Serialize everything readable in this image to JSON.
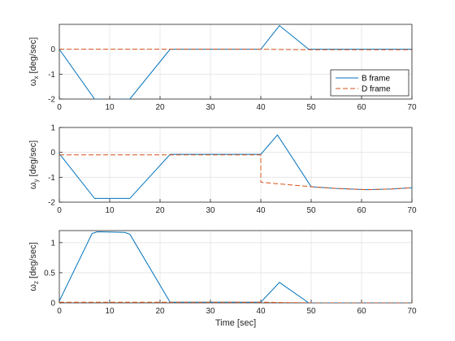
{
  "chart_data": [
    {
      "type": "line",
      "ylabel": "ω_x [deg/sec]",
      "ylabel_main": "ω",
      "ylabel_sub": "x",
      "ylabel_unit": " [deg/sec]",
      "xlabel": "",
      "xlim": [
        0,
        70
      ],
      "ylim": [
        -2,
        1
      ],
      "xticks": [
        0,
        10,
        20,
        30,
        40,
        50,
        60,
        70
      ],
      "yticks": [
        -2,
        -1,
        0
      ],
      "grid": true,
      "legend": {
        "placement": "bottom-right",
        "entries": [
          "B frame",
          "D frame"
        ]
      },
      "series": [
        {
          "name": "B frame",
          "color": "#0072BD",
          "dash": "solid",
          "x": [
            0,
            7,
            10,
            14,
            22,
            40,
            43.7,
            49.5,
            70
          ],
          "y": [
            0,
            -2.0,
            -2.02,
            -2.0,
            0,
            0,
            0.95,
            0,
            0
          ]
        },
        {
          "name": "D frame",
          "color": "#D95319",
          "dash": "dashed",
          "x": [
            0,
            40,
            50,
            70
          ],
          "y": [
            0,
            0,
            -0.02,
            -0.02
          ]
        }
      ]
    },
    {
      "type": "line",
      "ylabel": "ω_y [deg/sec]",
      "ylabel_main": "ω",
      "ylabel_sub": "y",
      "ylabel_unit": " [deg/sec]",
      "xlabel": "",
      "xlim": [
        0,
        70
      ],
      "ylim": [
        -2,
        1
      ],
      "xticks": [
        0,
        10,
        20,
        30,
        40,
        50,
        60,
        70
      ],
      "yticks": [
        -2,
        -1,
        0,
        1
      ],
      "grid": true,
      "series": [
        {
          "name": "B frame",
          "color": "#0072BD",
          "dash": "solid",
          "x": [
            0,
            7,
            14,
            22,
            40,
            43.3,
            50,
            55,
            61,
            66,
            70
          ],
          "y": [
            -0.05,
            -1.85,
            -1.85,
            -0.08,
            -0.08,
            0.7,
            -1.38,
            -1.45,
            -1.5,
            -1.47,
            -1.42
          ]
        },
        {
          "name": "D frame",
          "color": "#D95319",
          "dash": "dashed",
          "x": [
            0,
            40,
            40,
            50,
            55,
            61,
            66,
            70
          ],
          "y": [
            -0.1,
            -0.1,
            -1.2,
            -1.38,
            -1.45,
            -1.5,
            -1.47,
            -1.42
          ]
        }
      ]
    },
    {
      "type": "line",
      "ylabel": "ω_z [deg/sec]",
      "ylabel_main": "ω",
      "ylabel_sub": "z",
      "ylabel_unit": " [deg/sec]",
      "xlabel": "Time [sec]",
      "xlim": [
        0,
        70
      ],
      "ylim": [
        0,
        1.2
      ],
      "xticks": [
        0,
        10,
        20,
        30,
        40,
        50,
        60,
        70
      ],
      "yticks": [
        0,
        0.5,
        1
      ],
      "grid": true,
      "series": [
        {
          "name": "B frame",
          "color": "#0072BD",
          "dash": "solid",
          "x": [
            0,
            6.5,
            7.5,
            13,
            14,
            22,
            40,
            43.7,
            49.5,
            70
          ],
          "y": [
            0.03,
            1.15,
            1.18,
            1.17,
            1.14,
            0.01,
            0.01,
            0.34,
            0,
            0
          ]
        },
        {
          "name": "D frame",
          "color": "#D95319",
          "dash": "dashed",
          "x": [
            0,
            40,
            50,
            70
          ],
          "y": [
            0.01,
            0.01,
            0,
            0
          ]
        }
      ]
    }
  ]
}
